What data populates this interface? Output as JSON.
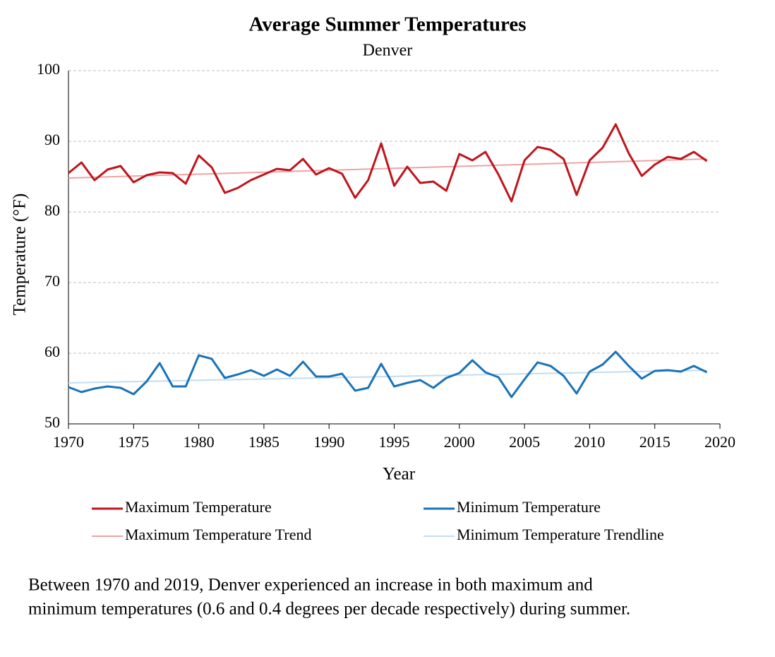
{
  "chart_data": {
    "type": "line",
    "title": "Average Summer Temperatures",
    "subtitle": "Denver",
    "x_label": "Year",
    "y_label": "Temperature (°F)",
    "caption": [
      "Between 1970 and 2019, Denver experienced an increase in both maximum and",
      "minimum temperatures (0.6 and 0.4 degrees per decade respectively) during summer."
    ],
    "x": [
      1970,
      1971,
      1972,
      1973,
      1974,
      1975,
      1976,
      1977,
      1978,
      1979,
      1980,
      1981,
      1982,
      1983,
      1984,
      1985,
      1986,
      1987,
      1988,
      1989,
      1990,
      1991,
      1992,
      1993,
      1994,
      1995,
      1996,
      1997,
      1998,
      1999,
      2000,
      2001,
      2002,
      2003,
      2004,
      2005,
      2006,
      2007,
      2008,
      2009,
      2010,
      2011,
      2012,
      2013,
      2014,
      2015,
      2016,
      2017,
      2018,
      2019
    ],
    "series": [
      {
        "name": "Maximum Temperature",
        "color": "#c0141c",
        "width": 3,
        "values": [
          85.5,
          87.0,
          84.5,
          86.0,
          86.5,
          84.2,
          85.2,
          85.6,
          85.5,
          84.0,
          88.0,
          86.3,
          82.7,
          83.4,
          84.5,
          85.3,
          86.1,
          85.9,
          87.5,
          85.3,
          86.2,
          85.4,
          82.0,
          84.5,
          89.7,
          83.7,
          86.4,
          84.1,
          84.3,
          83.0,
          88.2,
          87.3,
          88.5,
          85.3,
          81.5,
          87.3,
          89.2,
          88.8,
          87.5,
          82.4,
          87.3,
          89.1,
          92.4,
          88.3,
          85.1,
          86.7,
          87.8,
          87.5,
          88.5,
          87.2
        ]
      },
      {
        "name": "Minimum Temperature",
        "color": "#1a73b8",
        "width": 3,
        "values": [
          55.2,
          54.5,
          55.0,
          55.3,
          55.1,
          54.2,
          56.0,
          58.6,
          55.3,
          55.3,
          59.7,
          59.2,
          56.5,
          57.0,
          57.6,
          56.8,
          57.7,
          56.8,
          58.8,
          56.7,
          56.7,
          57.1,
          54.7,
          55.1,
          58.5,
          55.3,
          55.8,
          56.2,
          55.1,
          56.5,
          57.2,
          59.0,
          57.3,
          56.6,
          53.8,
          56.3,
          58.7,
          58.2,
          56.8,
          54.3,
          57.4,
          58.4,
          60.2,
          58.2,
          56.4,
          57.5,
          57.6,
          57.4,
          58.2,
          57.3
        ]
      },
      {
        "name": "Maximum Temperature Trend",
        "color": "#eea3a3",
        "width": 2,
        "x": [
          1970,
          2019
        ],
        "values": [
          84.8,
          87.5
        ]
      },
      {
        "name": "Minimum Temperature Trendline",
        "color": "#c4dcf0",
        "width": 2,
        "x": [
          1970,
          2019
        ],
        "values": [
          55.8,
          57.6
        ]
      }
    ],
    "xlim": [
      1970,
      2020
    ],
    "xticks": [
      1970,
      1975,
      1980,
      1985,
      1990,
      1995,
      2000,
      2005,
      2010,
      2015,
      2020
    ],
    "ylim": [
      50,
      100
    ],
    "yticks": [
      50,
      60,
      70,
      80,
      90,
      100
    ],
    "grid": true
  }
}
